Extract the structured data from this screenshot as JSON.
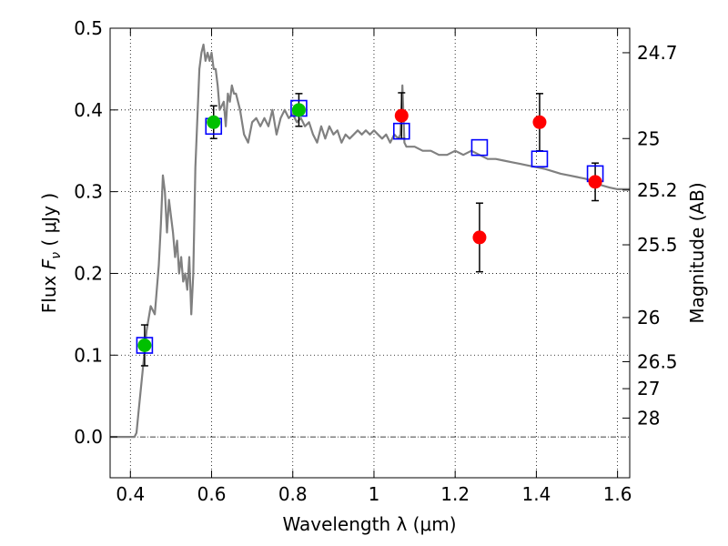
{
  "chart_data": {
    "type": "scatter",
    "xlabel": "Wavelength  λ (μm)",
    "ylabel": "Flux  F_ν  ( μJy )",
    "ylabel_parts": {
      "prefix": "Flux  ",
      "symbol": "F",
      "subscript": "ν",
      "suffix": "  ( μJy )"
    },
    "y2label": "Magnitude (AB)",
    "xlim": [
      0.35,
      1.63
    ],
    "ylim": [
      -0.05,
      0.5
    ],
    "grid": true,
    "grid_style": "dotted",
    "x_ticks": [
      0.4,
      0.6,
      0.8,
      1.0,
      1.2,
      1.4,
      1.6
    ],
    "x_tick_labels": [
      "0.4",
      "0.6",
      "0.8",
      "1",
      "1.2",
      "1.4",
      "1.6"
    ],
    "y_ticks": [
      0.0,
      0.1,
      0.2,
      0.3,
      0.4,
      0.5
    ],
    "y_tick_labels": [
      "0.0",
      "0.1",
      "0.2",
      "0.3",
      "0.4",
      "0.5"
    ],
    "y2_ticks": [
      {
        "label": "24.7",
        "flux": 0.47
      },
      {
        "label": "25",
        "flux": 0.365
      },
      {
        "label": "25.2",
        "flux": 0.302
      },
      {
        "label": "25.5",
        "flux": 0.235
      },
      {
        "label": "26",
        "flux": 0.146
      },
      {
        "label": "26.5",
        "flux": 0.092
      },
      {
        "label": "27",
        "flux": 0.059
      },
      {
        "label": "28",
        "flux": 0.023
      }
    ],
    "colors": {
      "model": "#808080",
      "green": "#00c000",
      "red": "#ff0000",
      "square": "#0000ff",
      "errorbar": "#000000",
      "zero_line": "#000000"
    },
    "series": [
      {
        "type": "line",
        "x": [
          0.35,
          0.4,
          0.41,
          0.415,
          0.42,
          0.43,
          0.44,
          0.45,
          0.46,
          0.465,
          0.47,
          0.475,
          0.48,
          0.485,
          0.49,
          0.495,
          0.5,
          0.505,
          0.51,
          0.515,
          0.52,
          0.525,
          0.53,
          0.535,
          0.54,
          0.545,
          0.55,
          0.555,
          0.56,
          0.57,
          0.575,
          0.58,
          0.585,
          0.59,
          0.595,
          0.6,
          0.605,
          0.61,
          0.615,
          0.62,
          0.63,
          0.635,
          0.64,
          0.645,
          0.65,
          0.655,
          0.66,
          0.67,
          0.68,
          0.69,
          0.7,
          0.71,
          0.72,
          0.73,
          0.74,
          0.75,
          0.76,
          0.77,
          0.78,
          0.79,
          0.8,
          0.81,
          0.82,
          0.83,
          0.84,
          0.85,
          0.86,
          0.87,
          0.88,
          0.89,
          0.9,
          0.91,
          0.92,
          0.93,
          0.94,
          0.95,
          0.96,
          0.97,
          0.98,
          0.99,
          1.0,
          1.01,
          1.02,
          1.03,
          1.04,
          1.05,
          1.06,
          1.065,
          1.07,
          1.075,
          1.08,
          1.1,
          1.12,
          1.14,
          1.16,
          1.18,
          1.2,
          1.22,
          1.24,
          1.26,
          1.28,
          1.3,
          1.32,
          1.34,
          1.36,
          1.38,
          1.4,
          1.42,
          1.44,
          1.46,
          1.48,
          1.5,
          1.52,
          1.54,
          1.56,
          1.58,
          1.6,
          1.63
        ],
        "y": [
          0.0,
          0.0,
          0.0,
          0.005,
          0.03,
          0.08,
          0.13,
          0.16,
          0.15,
          0.18,
          0.21,
          0.26,
          0.32,
          0.3,
          0.25,
          0.29,
          0.27,
          0.25,
          0.22,
          0.24,
          0.2,
          0.22,
          0.19,
          0.2,
          0.18,
          0.22,
          0.15,
          0.2,
          0.33,
          0.45,
          0.47,
          0.48,
          0.46,
          0.47,
          0.46,
          0.47,
          0.45,
          0.45,
          0.43,
          0.4,
          0.41,
          0.38,
          0.42,
          0.41,
          0.43,
          0.42,
          0.42,
          0.4,
          0.37,
          0.36,
          0.385,
          0.39,
          0.38,
          0.39,
          0.38,
          0.4,
          0.37,
          0.39,
          0.4,
          0.39,
          0.395,
          0.385,
          0.39,
          0.38,
          0.385,
          0.37,
          0.36,
          0.38,
          0.365,
          0.38,
          0.37,
          0.375,
          0.36,
          0.37,
          0.365,
          0.37,
          0.375,
          0.37,
          0.375,
          0.37,
          0.375,
          0.37,
          0.365,
          0.37,
          0.36,
          0.37,
          0.365,
          0.37,
          0.43,
          0.36,
          0.355,
          0.355,
          0.35,
          0.35,
          0.345,
          0.345,
          0.35,
          0.345,
          0.35,
          0.345,
          0.34,
          0.34,
          0.338,
          0.336,
          0.334,
          0.332,
          0.33,
          0.328,
          0.325,
          0.322,
          0.32,
          0.318,
          0.316,
          0.313,
          0.308,
          0.305,
          0.303,
          0.303
        ]
      },
      {
        "type": "error",
        "x": [
          0.435,
          0.605,
          0.815,
          1.068,
          1.26,
          1.408,
          1.545
        ],
        "y": [
          0.112,
          0.385,
          0.4,
          0.393,
          0.244,
          0.385,
          0.312
        ],
        "yerr": [
          0.025,
          0.02,
          0.02,
          0.028,
          0.042,
          0.035,
          0.023
        ]
      },
      {
        "type": "square",
        "x": [
          0.435,
          0.605,
          0.815,
          1.068,
          1.26,
          1.408,
          1.545
        ],
        "y": [
          0.112,
          0.38,
          0.402,
          0.374,
          0.354,
          0.34,
          0.322
        ]
      },
      {
        "type": "point",
        "color": "green",
        "x": [
          0.435,
          0.605,
          0.815
        ],
        "y": [
          0.112,
          0.385,
          0.4
        ]
      },
      {
        "type": "point",
        "color": "red",
        "x": [
          1.068,
          1.26,
          1.408,
          1.545
        ],
        "y": [
          0.393,
          0.244,
          0.385,
          0.312
        ]
      }
    ]
  }
}
